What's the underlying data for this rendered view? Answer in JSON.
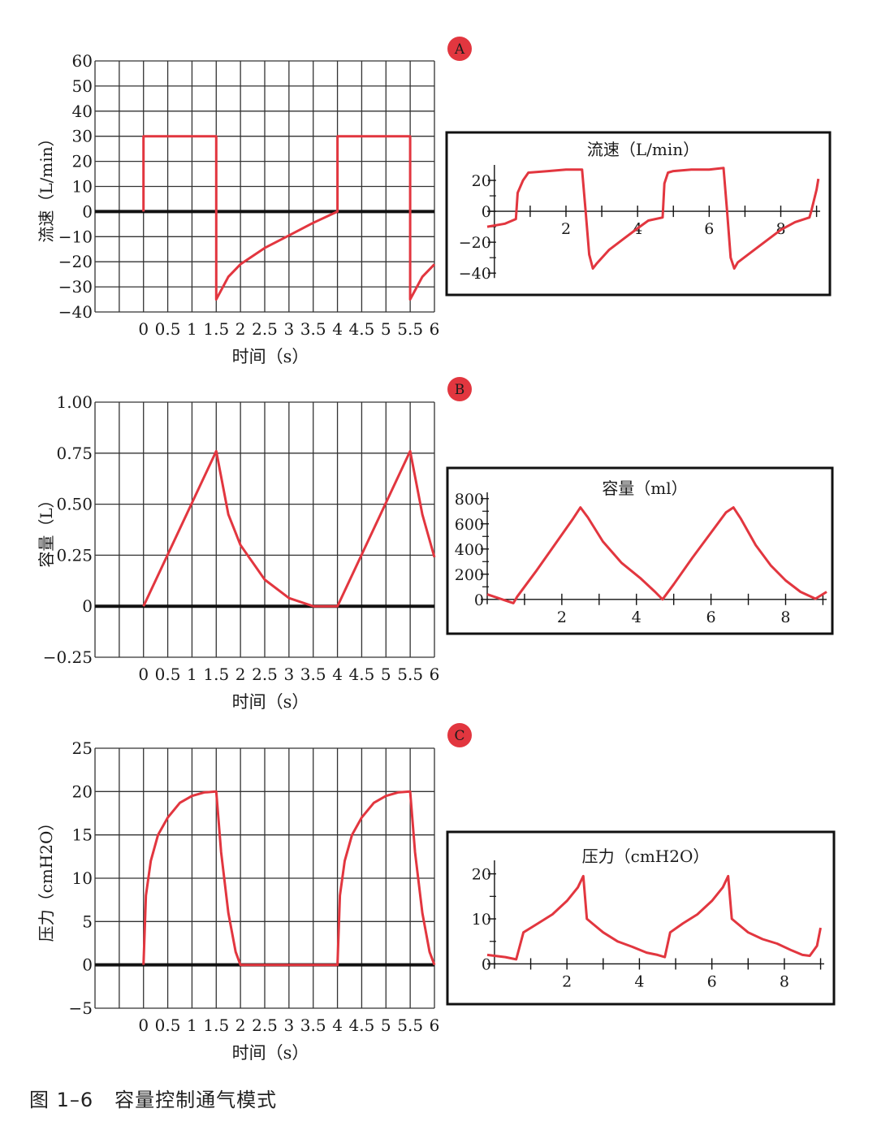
{
  "figure": {
    "caption_label": "图 1–6",
    "caption_title": "容量控制通气模式"
  },
  "colors": {
    "curve": "#e2363f",
    "grid": "#333333",
    "axis": "#111111",
    "badge": "#e2363f"
  },
  "chart_data": [
    {
      "id": "flow-theory",
      "panel_badge": "A",
      "type": "line",
      "title": "",
      "xlabel": "时间（s）",
      "ylabel": "流速（L/min）",
      "xlim": [
        -1,
        6
      ],
      "ylim": [
        -40,
        60
      ],
      "grid": true,
      "x_tick_labels": [
        "0",
        "0.5",
        "1",
        "1.5",
        "2",
        "2.5",
        "3",
        "3.5",
        "4",
        "4.5",
        "5",
        "5.5",
        "6"
      ],
      "y_ticks": [
        60,
        50,
        40,
        30,
        20,
        10,
        0,
        -10,
        -20,
        -30,
        -40
      ],
      "y_tick_labels": [
        "60",
        "50",
        "40",
        "30",
        "20",
        "10",
        "0",
        "−10",
        "−20",
        "−30",
        "−40"
      ],
      "x": [
        0,
        0,
        1.5,
        1.5,
        1.75,
        2,
        2.5,
        3,
        3.5,
        4,
        4,
        5.5,
        5.5,
        5.75,
        6
      ],
      "y": [
        0,
        30,
        30,
        -35,
        -26,
        -21,
        -14.5,
        -9.5,
        -4.5,
        0,
        30,
        30,
        -35,
        -26,
        -21
      ]
    },
    {
      "id": "flow-measured",
      "type": "line",
      "title": "流速（L/min）",
      "xlabel": "",
      "ylabel": "",
      "xlim": [
        -0.2,
        9.1
      ],
      "ylim": [
        -42,
        30
      ],
      "grid": false,
      "x_ticks": [
        2,
        4,
        6,
        8
      ],
      "x_tick_labels": [
        "2",
        "4",
        "6",
        "8"
      ],
      "y_ticks": [
        20,
        0,
        -20,
        -40
      ],
      "y_tick_labels": [
        "20",
        "0",
        "−20",
        "−40"
      ],
      "x": [
        -0.2,
        0.3,
        0.6,
        0.65,
        0.8,
        0.95,
        1.5,
        2.0,
        2.45,
        2.55,
        2.65,
        2.75,
        2.85,
        3.2,
        3.6,
        4.0,
        4.3,
        4.7,
        4.75,
        4.85,
        5.0,
        5.5,
        6.0,
        6.4,
        6.5,
        6.6,
        6.7,
        6.8,
        7.2,
        7.6,
        8.0,
        8.4,
        8.8,
        8.85,
        9.0,
        9.05
      ],
      "y": [
        -10,
        -8,
        -5,
        12,
        20,
        25,
        26,
        27,
        27,
        0,
        -28,
        -37,
        -34,
        -25,
        -18,
        -11,
        -6,
        -4,
        18,
        25,
        26,
        27,
        27,
        28,
        0,
        -30,
        -37,
        -33,
        -26,
        -19,
        -12,
        -7,
        -4,
        0,
        14,
        21
      ]
    },
    {
      "id": "volume-theory",
      "panel_badge": "B",
      "type": "line",
      "title": "",
      "xlabel": "时间（s）",
      "ylabel": "容量（L）",
      "xlim": [
        -1,
        6
      ],
      "ylim": [
        -0.25,
        1.0
      ],
      "grid": true,
      "x_tick_labels": [
        "0",
        "0.5",
        "1",
        "1.5",
        "2",
        "2.5",
        "3",
        "3.5",
        "4",
        "4.5",
        "5",
        "5.5",
        "6"
      ],
      "y_ticks": [
        1.0,
        0.75,
        0.5,
        0.25,
        0,
        -0.25
      ],
      "y_tick_labels": [
        "1.00",
        "0.75",
        "0.50",
        "0.25",
        "0",
        "−0.25"
      ],
      "x": [
        0,
        1.5,
        1.75,
        2,
        2.5,
        3,
        3.5,
        4,
        5.5,
        5.75,
        6
      ],
      "y": [
        0,
        0.76,
        0.45,
        0.3,
        0.13,
        0.04,
        0.0,
        0.0,
        0.76,
        0.45,
        0.24
      ]
    },
    {
      "id": "volume-measured",
      "type": "line",
      "title": "容量（ml）",
      "xlabel": "",
      "ylabel": "",
      "xlim": [
        0,
        9.1
      ],
      "ylim": [
        -40,
        850
      ],
      "grid": false,
      "x_ticks": [
        2,
        4,
        6,
        8
      ],
      "x_tick_labels": [
        "2",
        "4",
        "6",
        "8"
      ],
      "y_ticks": [
        800,
        600,
        400,
        200,
        0
      ],
      "y_tick_labels": [
        "800",
        "600",
        "400",
        "200",
        "0"
      ],
      "x": [
        0,
        0.2,
        0.7,
        0.8,
        1.3,
        1.8,
        2.3,
        2.5,
        2.7,
        3.1,
        3.6,
        4.1,
        4.5,
        4.7,
        5.0,
        5.5,
        6.0,
        6.4,
        6.6,
        6.8,
        7.2,
        7.6,
        8.0,
        8.4,
        8.8,
        9.1
      ],
      "y": [
        40,
        20,
        -30,
        20,
        220,
        430,
        640,
        730,
        650,
        460,
        290,
        170,
        60,
        0,
        120,
        330,
        530,
        690,
        730,
        640,
        430,
        270,
        150,
        60,
        5,
        60
      ]
    },
    {
      "id": "pressure-theory",
      "panel_badge": "C",
      "type": "line",
      "title": "",
      "xlabel": "时间（s）",
      "ylabel": "压力（cmH2O）",
      "xlim": [
        -1,
        6
      ],
      "ylim": [
        -5,
        25
      ],
      "grid": true,
      "x_tick_labels": [
        "0",
        "0.5",
        "1",
        "1.5",
        "2",
        "2.5",
        "3",
        "3.5",
        "4",
        "4.5",
        "5",
        "5.5",
        "6"
      ],
      "y_ticks": [
        25,
        20,
        15,
        10,
        5,
        0,
        -5
      ],
      "y_tick_labels": [
        "25",
        "20",
        "15",
        "10",
        "5",
        "0",
        "−5"
      ],
      "x": [
        0,
        0.05,
        0.15,
        0.3,
        0.5,
        0.75,
        1.0,
        1.25,
        1.5,
        1.5,
        1.6,
        1.75,
        1.9,
        2.0,
        4.0,
        4.05,
        4.15,
        4.3,
        4.5,
        4.75,
        5.0,
        5.25,
        5.5,
        5.5,
        5.6,
        5.75,
        5.9,
        6.0
      ],
      "y": [
        0,
        8,
        12,
        15,
        17,
        18.7,
        19.5,
        19.9,
        20,
        20,
        13,
        6,
        1.5,
        0,
        0,
        8,
        12,
        15,
        17,
        18.7,
        19.5,
        19.9,
        20,
        20,
        13,
        6,
        1.5,
        0
      ]
    },
    {
      "id": "pressure-measured",
      "type": "line",
      "title": "压力（cmH2O）",
      "xlabel": "",
      "ylabel": "",
      "xlim": [
        -0.2,
        9.1
      ],
      "ylim": [
        -1,
        23
      ],
      "grid": false,
      "x_ticks": [
        2,
        4,
        6,
        8
      ],
      "x_tick_labels": [
        "2",
        "4",
        "6",
        "8"
      ],
      "y_ticks": [
        20,
        10,
        0
      ],
      "y_tick_labels": [
        "20",
        "10",
        "0"
      ],
      "x": [
        -0.2,
        0.3,
        0.6,
        0.8,
        1.2,
        1.6,
        2.0,
        2.3,
        2.45,
        2.55,
        2.7,
        3.0,
        3.4,
        3.8,
        4.2,
        4.5,
        4.7,
        4.85,
        5.2,
        5.6,
        6.0,
        6.3,
        6.45,
        6.55,
        6.7,
        7.0,
        7.4,
        7.8,
        8.2,
        8.5,
        8.7,
        8.9,
        9.0
      ],
      "y": [
        2,
        1.5,
        1,
        7,
        9,
        11,
        14,
        17,
        19.5,
        10,
        9,
        7,
        5,
        3.8,
        2.5,
        2,
        1.5,
        7,
        9,
        11,
        14,
        17,
        19.5,
        10,
        9,
        7,
        5.5,
        4.5,
        3,
        2,
        1.8,
        4,
        8
      ]
    }
  ]
}
